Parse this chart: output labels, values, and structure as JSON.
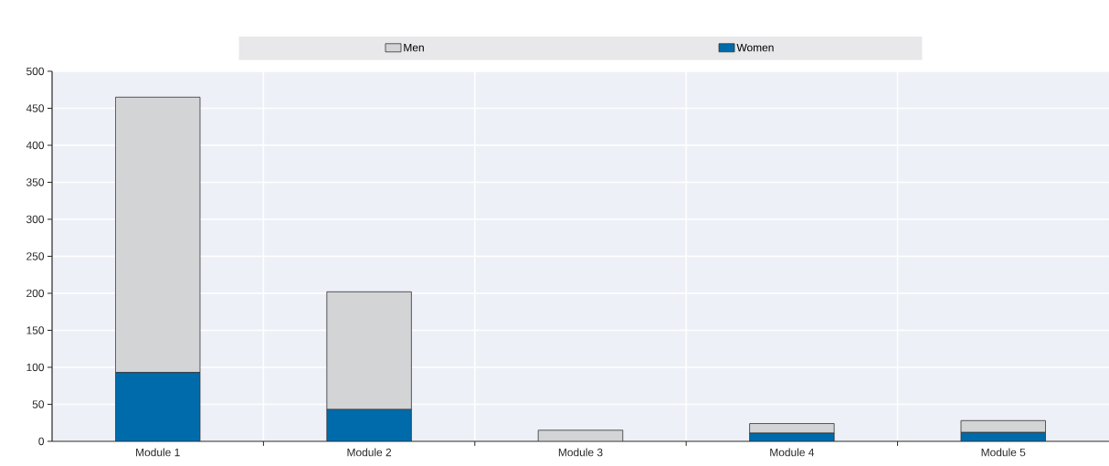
{
  "chart_data": {
    "type": "bar",
    "stacked": true,
    "categories": [
      "Module 1",
      "Module 2",
      "Module 3",
      "Module 4",
      "Module 5"
    ],
    "series": [
      {
        "name": "Women",
        "color": "#006bab",
        "values": [
          93,
          43,
          0,
          11,
          12
        ]
      },
      {
        "name": "Men",
        "color": "#d3d4d6",
        "values": [
          372,
          159,
          15,
          13,
          16
        ]
      }
    ],
    "ylim": [
      0,
      500
    ],
    "yticks": [
      0,
      50,
      100,
      150,
      200,
      250,
      300,
      350,
      400,
      450,
      500
    ],
    "grid": true,
    "legend": "top"
  }
}
